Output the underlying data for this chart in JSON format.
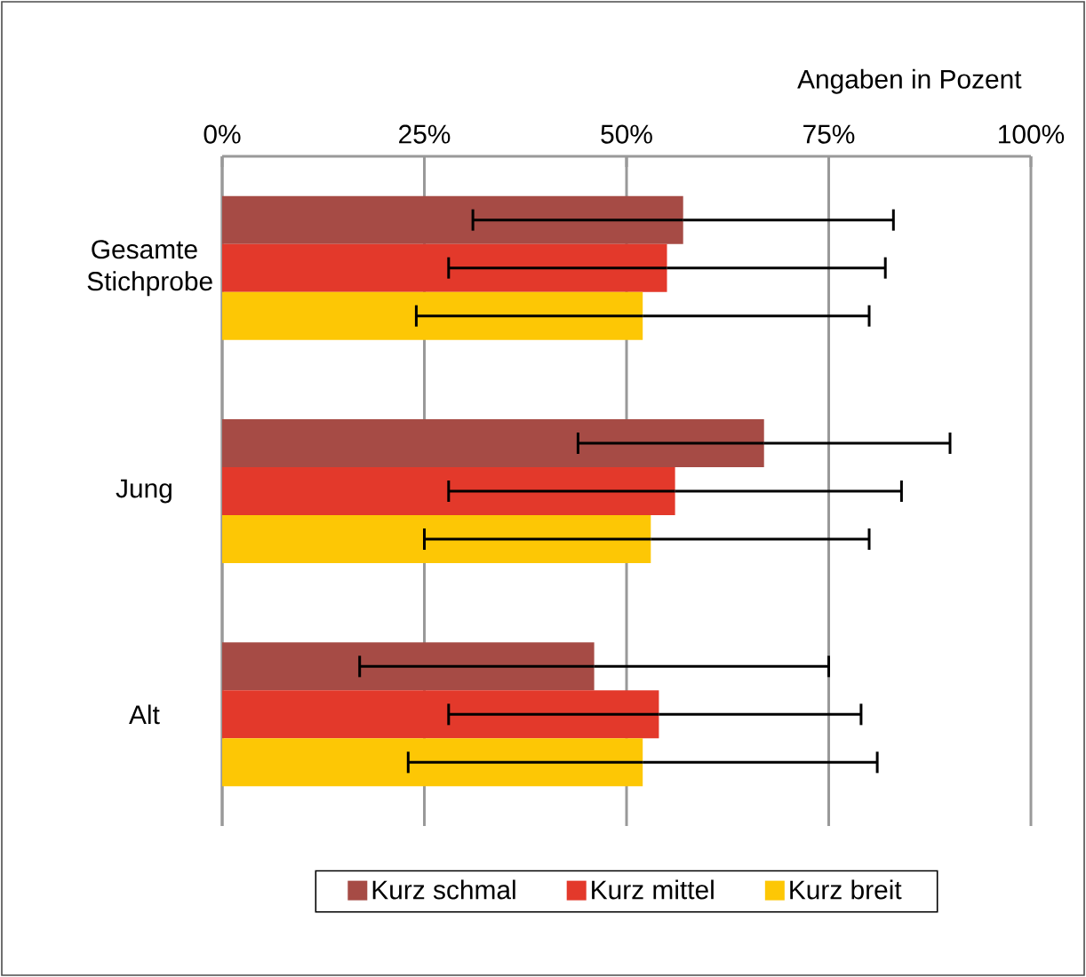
{
  "chart_data": {
    "type": "bar",
    "orientation": "horizontal",
    "xlabel": "Angaben in Pozent",
    "categories": [
      "Gesamte Stichprobe",
      "Jung",
      "Alt"
    ],
    "series": [
      {
        "name": "Kurz schmal",
        "color": "#a64b45",
        "values": [
          57,
          67,
          46
        ],
        "errors": [
          [
            31,
            83
          ],
          [
            44,
            90
          ],
          [
            17,
            75
          ]
        ]
      },
      {
        "name": "Kurz mittel",
        "color": "#e3392b",
        "values": [
          55,
          56,
          54
        ],
        "errors": [
          [
            28,
            82
          ],
          [
            28,
            84
          ],
          [
            28,
            79
          ]
        ]
      },
      {
        "name": "Kurz breit",
        "color": "#fdc705",
        "values": [
          52,
          53,
          52
        ],
        "errors": [
          [
            24,
            80
          ],
          [
            25,
            80
          ],
          [
            23,
            81
          ]
        ]
      }
    ],
    "xlim": [
      0,
      100
    ],
    "xticks": [
      {
        "value": 0,
        "label": "0%"
      },
      {
        "value": 25,
        "label": "25%"
      },
      {
        "value": 50,
        "label": "50%"
      },
      {
        "value": 75,
        "label": "75%"
      },
      {
        "value": 100,
        "label": "100%"
      }
    ],
    "grid": "x",
    "legend": "bottom"
  }
}
